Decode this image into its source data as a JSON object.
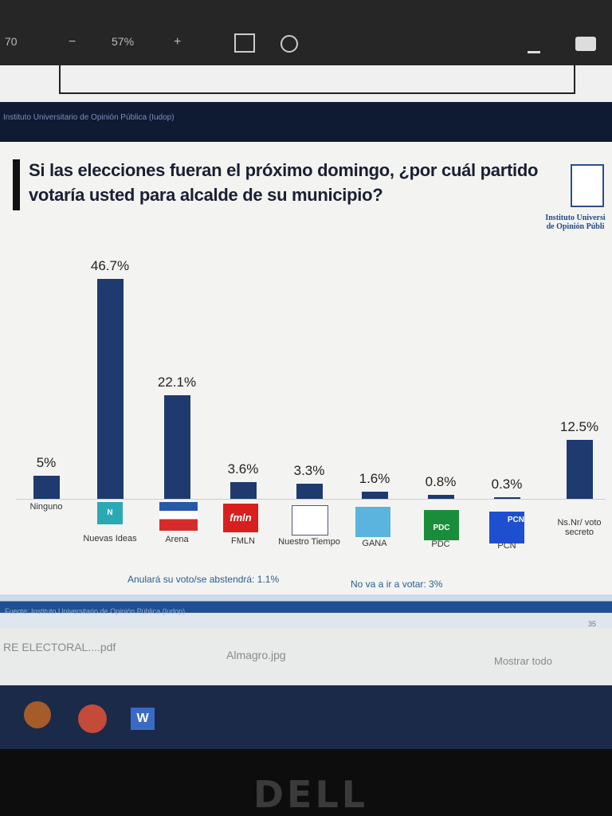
{
  "toolbar": {
    "page": "70",
    "zoom": "57%"
  },
  "source_top": "Instituto Universitario de Opinión Pública (Iudop)",
  "logo": {
    "line1": "Instituto Universi",
    "line2": "de Opinión Públi"
  },
  "party_logos": {
    "nuevas_ideas": "N",
    "fmln": "fmln",
    "pdc": "PDC",
    "pcn": "PCN"
  },
  "chart_data": {
    "type": "bar",
    "title": "Si las elecciones fueran el próximo domingo, ¿por cuál partido votaría usted para alcalde de su municipio?",
    "categories": [
      "Ninguno",
      "Nuevas Ideas",
      "Arena",
      "FMLN",
      "Nuestro Tiempo",
      "GANA",
      "PDC",
      "PCN",
      "Ns.Nr/ voto secreto"
    ],
    "values": [
      5,
      46.7,
      22.1,
      3.6,
      3.3,
      1.6,
      0.8,
      0.3,
      12.5
    ],
    "value_labels": [
      "5%",
      "46.7%",
      "22.1%",
      "3.6%",
      "3.3%",
      "1.6%",
      "0.8%",
      "0.3%",
      "12.5%"
    ],
    "color": "#1f3a6e",
    "notes": [
      "Anulará su voto/se abstendrá: 1.1%",
      "No va a ir a votar: 3%"
    ]
  },
  "footer": {
    "source": "Fuente: Instituto Universitario de Opinión Pública (Iudop)",
    "page": "35"
  },
  "downloads": [
    "RE ELECTORAL....pdf",
    "Almagro.jpg"
  ],
  "show_all": "Mostrar todo",
  "taskbar": {
    "word": "W"
  },
  "bezel": "DELL"
}
